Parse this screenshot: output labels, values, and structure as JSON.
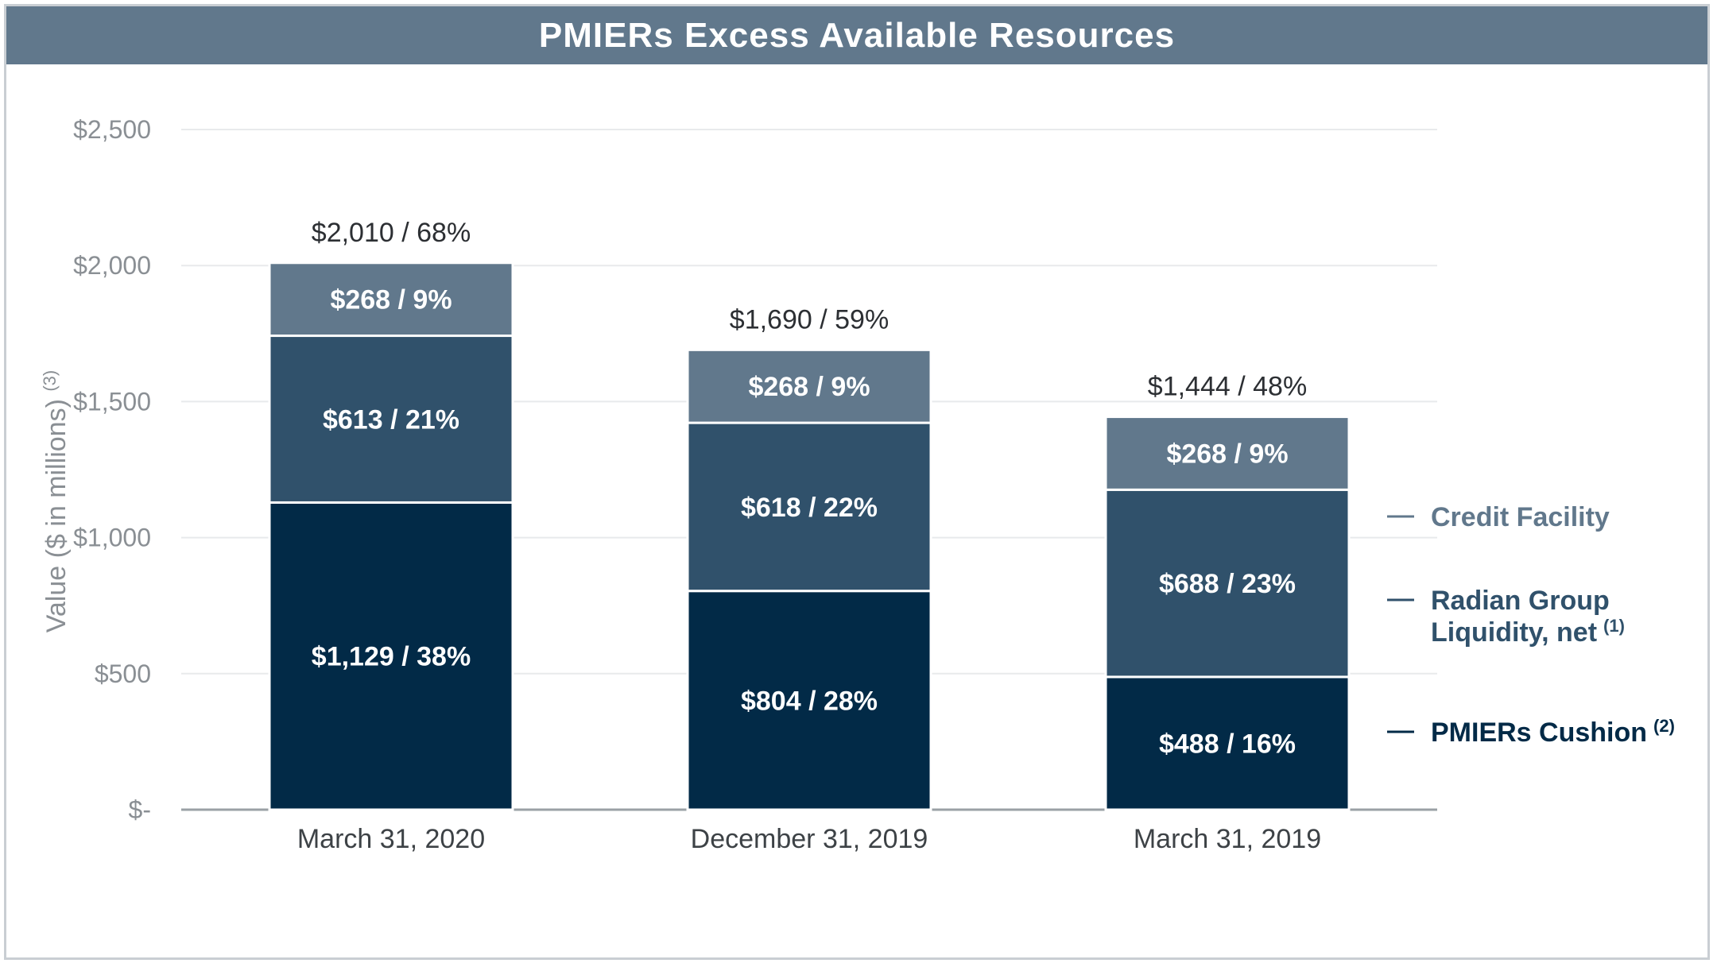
{
  "title": "PMIERs Excess Available Resources",
  "chart_data": {
    "type": "bar",
    "stacked": true,
    "title": "PMIERs Excess Available Resources",
    "ylabel": "Value ($ in millions)",
    "ylabel_sup": "(3)",
    "ylim": [
      0,
      2500
    ],
    "yticks": [
      0,
      500,
      1000,
      1500,
      2000,
      2500
    ],
    "ytick_labels": [
      "$-",
      "$500",
      "$1,000",
      "$1,500",
      "$2,000",
      "$2,500"
    ],
    "grid": true,
    "categories": [
      "March 31, 2020",
      "December 31, 2019",
      "March 31, 2019"
    ],
    "totals": [
      2010,
      1690,
      1444
    ],
    "total_labels": [
      "$2,010 / 68%",
      "$1,690 / 59%",
      "$1,444 / 48%"
    ],
    "series": [
      {
        "name": "PMIERs Cushion",
        "sup": "(2)",
        "color": "#022a47",
        "values": [
          1129,
          804,
          488
        ],
        "labels": [
          "$1,129 / 38%",
          "$804 / 28%",
          "$488 / 16%"
        ]
      },
      {
        "name": "Radian Group Liquidity, net",
        "name_lines": [
          "Radian Group",
          "Liquidity, net"
        ],
        "sup": "(1)",
        "color": "#30516b",
        "values": [
          613,
          618,
          688
        ],
        "labels": [
          "$613 / 21%",
          "$618 / 22%",
          "$688 / 23%"
        ]
      },
      {
        "name": "Credit Facility",
        "sup": "",
        "color": "#61788c",
        "values": [
          268,
          268,
          268
        ],
        "labels": [
          "$268 / 9%",
          "$268 / 9%",
          "$268 / 9%"
        ]
      }
    ],
    "legend_position": "right"
  }
}
